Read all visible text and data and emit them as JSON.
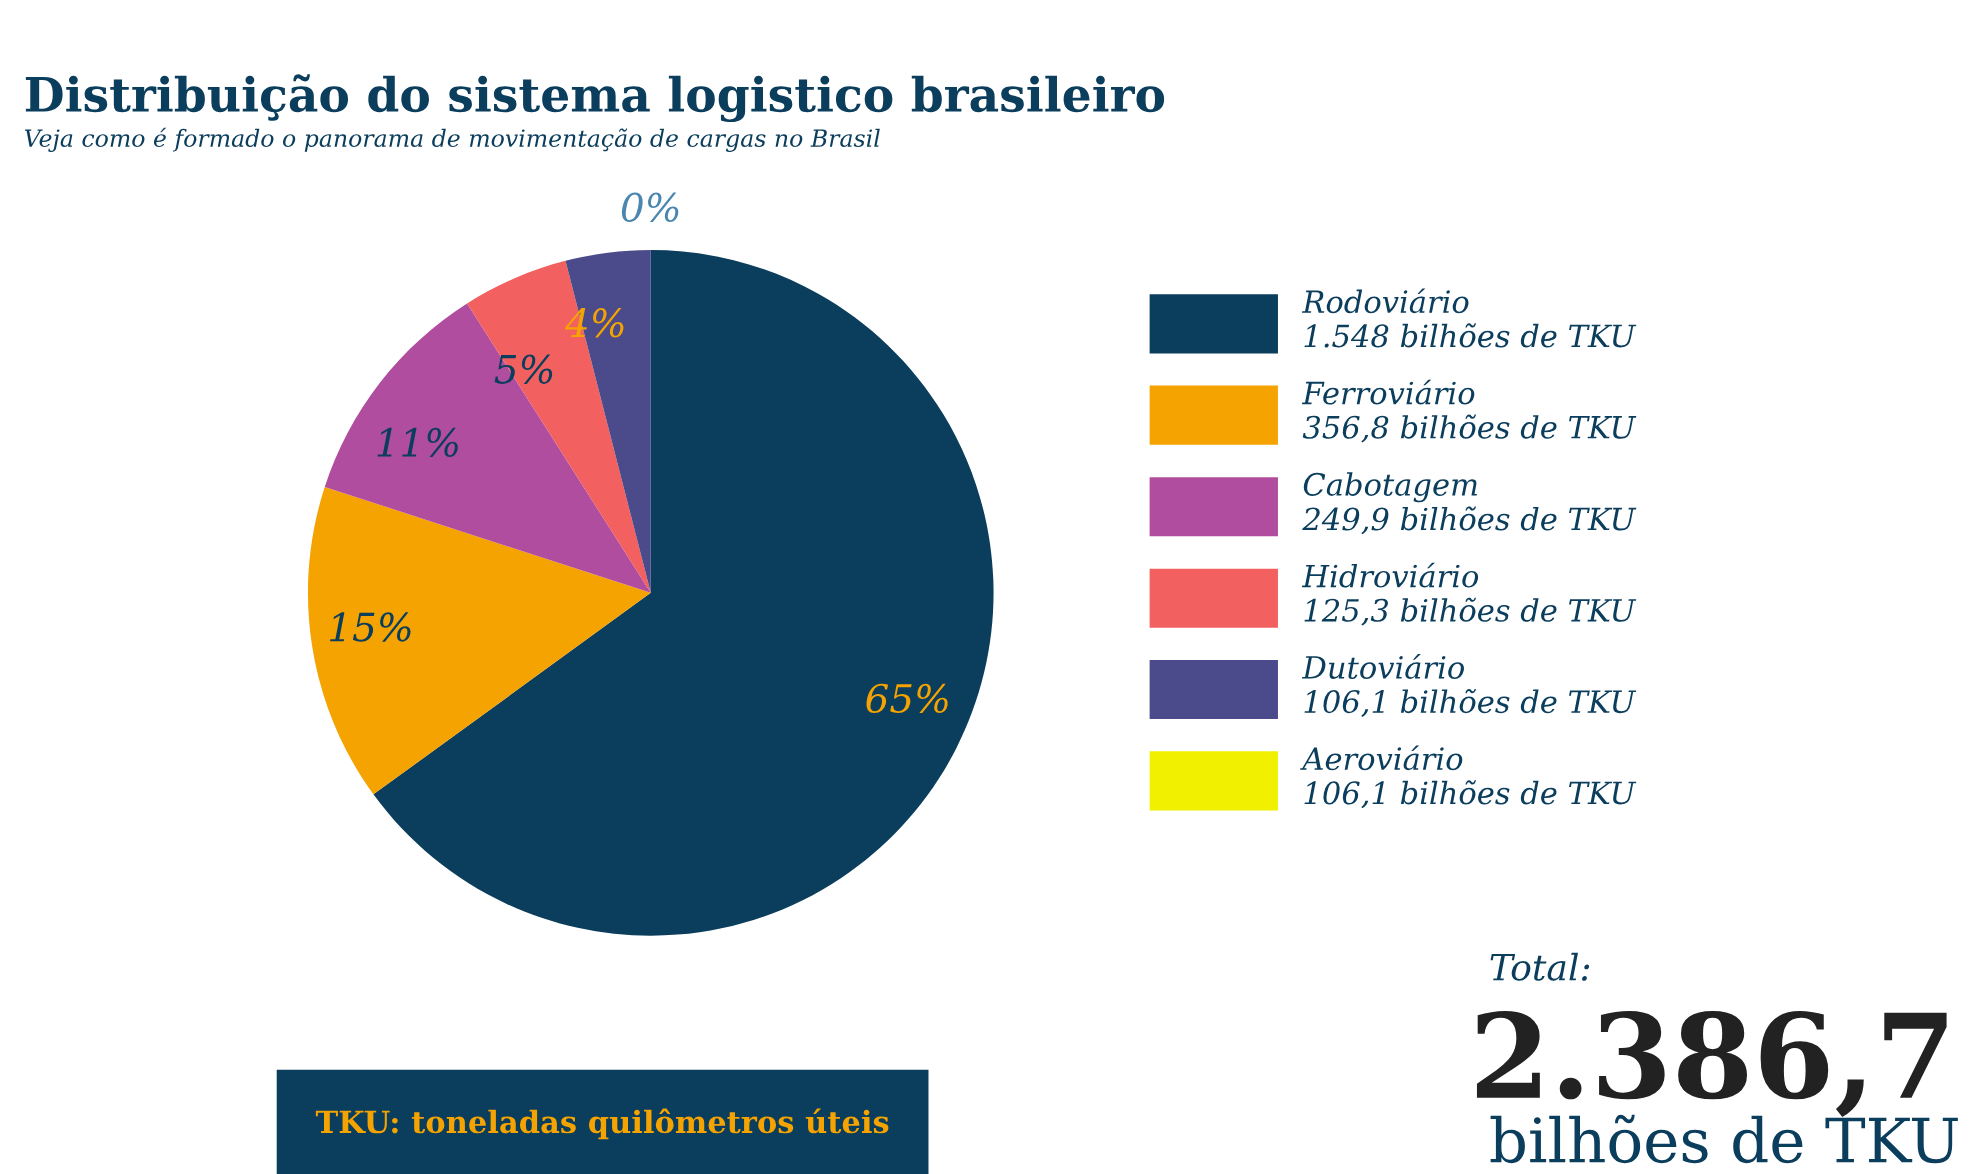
{
  "chart_data": {
    "type": "pie",
    "title": "Distribuição do sistema logistico brasileiro",
    "subtitle": "Veja como é formado o panorama de movimentação de cargas no Brasil",
    "categories": [
      "Rodoviário\n1.548 bilhões de TKU",
      "Ferroviário\n356,8 bilhões de TKU",
      "Cabotagem\n249,9 bilhões de TKU",
      "Hidroviário\n125,3 bilhões de TKU",
      "Dutoviário\n106,1 bilhões de TKU",
      "Aeroviário\n106,1 bilhões de TKU"
    ],
    "values": [
      65,
      15,
      11,
      5,
      4,
      0
    ],
    "colors": [
      "#0b3d5c",
      "#f5a300",
      "#b04d9e",
      "#f26060",
      "#4b4a8a",
      "#f0f000"
    ],
    "value_labels": [
      "65%",
      "15%",
      "11%",
      "5%",
      "4%",
      "0%"
    ],
    "legend": "right",
    "annotations": [
      "Total:",
      "2.386,7",
      "bilhões de TKU",
      "TKU: toneladas quilômetros úteis"
    ]
  }
}
